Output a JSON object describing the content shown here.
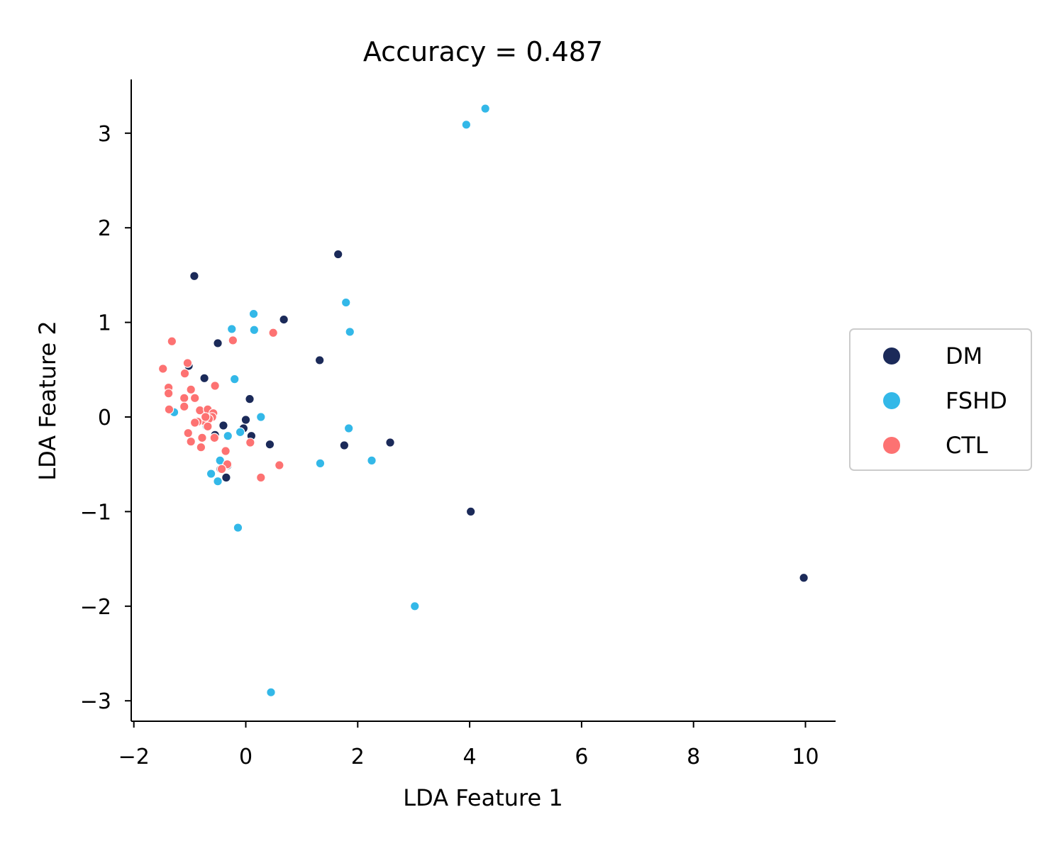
{
  "chart_data": {
    "type": "scatter",
    "title": "Accuracy = 0.487",
    "xlabel": "LDA Feature 1",
    "ylabel": "LDA Feature 2",
    "xlim": [
      -2.05,
      10.5
    ],
    "ylim": [
      -3.2,
      3.55
    ],
    "xticks": [
      -2,
      0,
      2,
      4,
      6,
      8,
      10
    ],
    "yticks": [
      -3,
      -2,
      -1,
      0,
      1,
      2,
      3
    ],
    "xtick_labels": [
      "−2",
      "0",
      "2",
      "4",
      "6",
      "8",
      "10"
    ],
    "ytick_labels": [
      "−3",
      "−2",
      "−1",
      "0",
      "1",
      "2",
      "3"
    ],
    "grid": false,
    "legend_placement": "right, outside plot",
    "series": [
      {
        "name": "DM",
        "color": "#1b2a59",
        "points": [
          [
            1.65,
            1.72
          ],
          [
            -0.92,
            1.49
          ],
          [
            0.68,
            1.03
          ],
          [
            1.32,
            0.6
          ],
          [
            -0.5,
            0.78
          ],
          [
            -1.02,
            0.54
          ],
          [
            -0.74,
            0.41
          ],
          [
            0.07,
            0.19
          ],
          [
            0.0,
            -0.03
          ],
          [
            -0.4,
            -0.09
          ],
          [
            -0.04,
            -0.12
          ],
          [
            0.1,
            -0.2
          ],
          [
            -0.55,
            -0.19
          ],
          [
            0.43,
            -0.29
          ],
          [
            1.76,
            -0.3
          ],
          [
            2.58,
            -0.27
          ],
          [
            -0.32,
            -0.51
          ],
          [
            -0.35,
            -0.64
          ],
          [
            4.02,
            -1.0
          ],
          [
            9.97,
            -1.7
          ],
          [
            -0.62,
            0.05
          ],
          [
            -0.45,
            -0.55
          ]
        ]
      },
      {
        "name": "FSHD",
        "color": "#33b8e8",
        "points": [
          [
            4.28,
            3.26
          ],
          [
            3.94,
            3.09
          ],
          [
            1.79,
            1.21
          ],
          [
            0.14,
            1.09
          ],
          [
            1.86,
            0.9
          ],
          [
            0.15,
            0.92
          ],
          [
            -0.25,
            0.93
          ],
          [
            -0.2,
            0.4
          ],
          [
            0.27,
            0.0
          ],
          [
            -0.1,
            -0.16
          ],
          [
            -1.28,
            0.05
          ],
          [
            1.84,
            -0.12
          ],
          [
            -0.32,
            -0.2
          ],
          [
            2.25,
            -0.46
          ],
          [
            1.33,
            -0.49
          ],
          [
            -0.62,
            -0.6
          ],
          [
            -0.46,
            -0.46
          ],
          [
            -0.5,
            -0.68
          ],
          [
            -0.14,
            -1.17
          ],
          [
            3.02,
            -2.0
          ],
          [
            0.45,
            -2.91
          ],
          [
            -0.7,
            -0.1
          ]
        ]
      },
      {
        "name": "CTL",
        "color": "#fd7272",
        "points": [
          [
            -1.32,
            0.8
          ],
          [
            -1.48,
            0.51
          ],
          [
            -1.04,
            0.57
          ],
          [
            -1.09,
            0.46
          ],
          [
            -1.38,
            0.31
          ],
          [
            -1.38,
            0.25
          ],
          [
            -0.98,
            0.29
          ],
          [
            -1.1,
            0.2
          ],
          [
            -0.91,
            0.2
          ],
          [
            -1.1,
            0.11
          ],
          [
            -1.37,
            0.08
          ],
          [
            -0.55,
            0.33
          ],
          [
            -0.82,
            0.07
          ],
          [
            -0.68,
            0.08
          ],
          [
            -0.58,
            0.04
          ],
          [
            -0.6,
            0.0
          ],
          [
            -0.66,
            -0.02
          ],
          [
            -0.76,
            -0.04
          ],
          [
            -0.86,
            -0.05
          ],
          [
            -0.91,
            -0.06
          ],
          [
            -0.68,
            -0.1
          ],
          [
            -1.03,
            -0.17
          ],
          [
            -0.56,
            -0.22
          ],
          [
            -0.78,
            -0.22
          ],
          [
            -0.98,
            -0.26
          ],
          [
            -0.8,
            -0.32
          ],
          [
            -0.23,
            0.81
          ],
          [
            0.49,
            0.89
          ],
          [
            0.08,
            -0.27
          ],
          [
            -0.36,
            -0.36
          ],
          [
            -0.33,
            -0.5
          ],
          [
            -0.43,
            -0.55
          ],
          [
            0.6,
            -0.51
          ],
          [
            0.27,
            -0.64
          ],
          [
            -0.72,
            0.0
          ]
        ]
      }
    ]
  }
}
